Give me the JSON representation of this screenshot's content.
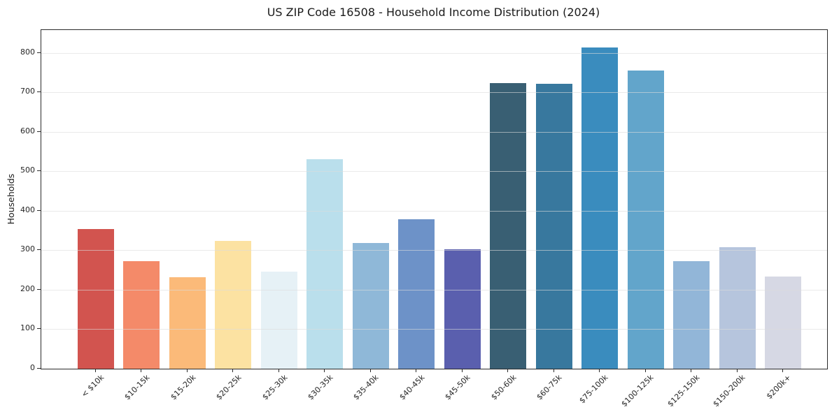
{
  "chart_data": {
    "type": "bar",
    "title": "US ZIP Code 16508 - Household Income Distribution (2024)",
    "xlabel": "",
    "ylabel": "Households",
    "categories": [
      "< $10k",
      "$10-15k",
      "$15-20k",
      "$20-25k",
      "$25-30k",
      "$30-35k",
      "$35-40k",
      "$40-45k",
      "$45-50k",
      "$50-60k",
      "$60-75k",
      "$75-100k",
      "$100-125k",
      "$125-150k",
      "$150-200k",
      "$200k+"
    ],
    "values": [
      354,
      273,
      232,
      323,
      246,
      531,
      319,
      379,
      303,
      723,
      721,
      813,
      755,
      272,
      308,
      234
    ],
    "bar_colors": [
      "#d2544f",
      "#f48a69",
      "#fbba79",
      "#fce2a2",
      "#e6f1f6",
      "#badfec",
      "#8fb8d8",
      "#6d92c8",
      "#5a5fae",
      "#395f73",
      "#38789e",
      "#3a8cbe",
      "#62a5cb",
      "#92b6d8",
      "#b6c5dd",
      "#d6d8e4"
    ],
    "ylim": [
      0,
      858
    ],
    "yticks": [
      0,
      100,
      200,
      300,
      400,
      500,
      600,
      700,
      800
    ],
    "grid": "horizontal",
    "legend": "none",
    "x_tick_rotation_deg": 45,
    "axis_color": "#2b2b2b",
    "background_color": "#ffffff"
  }
}
